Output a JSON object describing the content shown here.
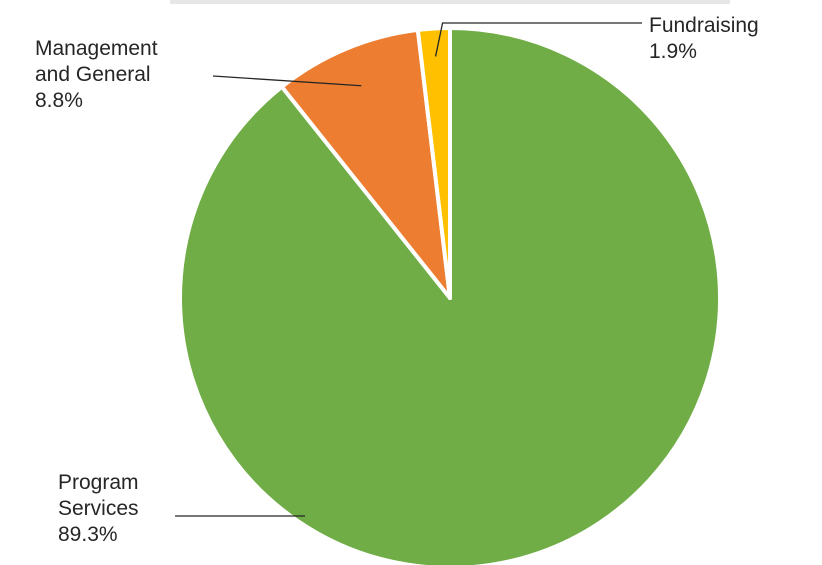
{
  "chart_data": {
    "type": "pie",
    "title": "",
    "start": "top",
    "direction": "clockwise",
    "slices": [
      {
        "label_lines": [
          "Program",
          "Services"
        ],
        "value": 89.3,
        "value_label": "89.3%",
        "color": "#70ad47"
      },
      {
        "label_lines": [
          "Management",
          "and General"
        ],
        "value": 8.8,
        "value_label": "8.8%",
        "color": "#ed7d31"
      },
      {
        "label_lines": [
          "Fundraising"
        ],
        "value": 1.9,
        "value_label": "1.9%",
        "color": "#ffc000"
      }
    ]
  }
}
